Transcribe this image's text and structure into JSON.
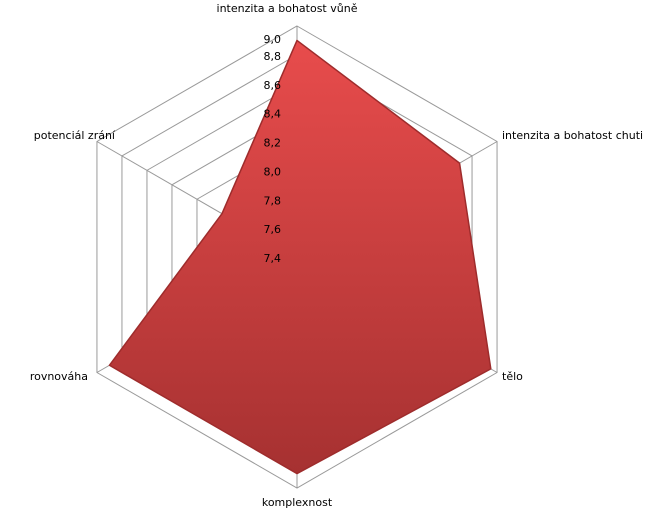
{
  "chart_data": {
    "type": "radar",
    "categories": [
      "intenzita a bohatost vůně",
      "intenzita a bohatost chuti",
      "tělo",
      "komplexnost",
      "rovnováha",
      "potenciál zrání"
    ],
    "series": [
      {
        "color": "#d94343",
        "values": [
          8.9,
          8.7,
          8.95,
          8.9,
          8.9,
          8.0
        ]
      }
    ],
    "ylim": [
      7.4,
      9.0
    ],
    "yticks": [
      {
        "value": 7.4,
        "label": "7,4"
      },
      {
        "value": 7.6,
        "label": "7,6"
      },
      {
        "value": 7.8,
        "label": "7,8"
      },
      {
        "value": 8.0,
        "label": "8,0"
      },
      {
        "value": 8.2,
        "label": "8,2"
      },
      {
        "value": 8.4,
        "label": "8,4"
      },
      {
        "value": 8.6,
        "label": "8,6"
      },
      {
        "value": 8.8,
        "label": "8,8"
      },
      {
        "value": 9.0,
        "label": "9,0"
      }
    ],
    "grid": true
  }
}
